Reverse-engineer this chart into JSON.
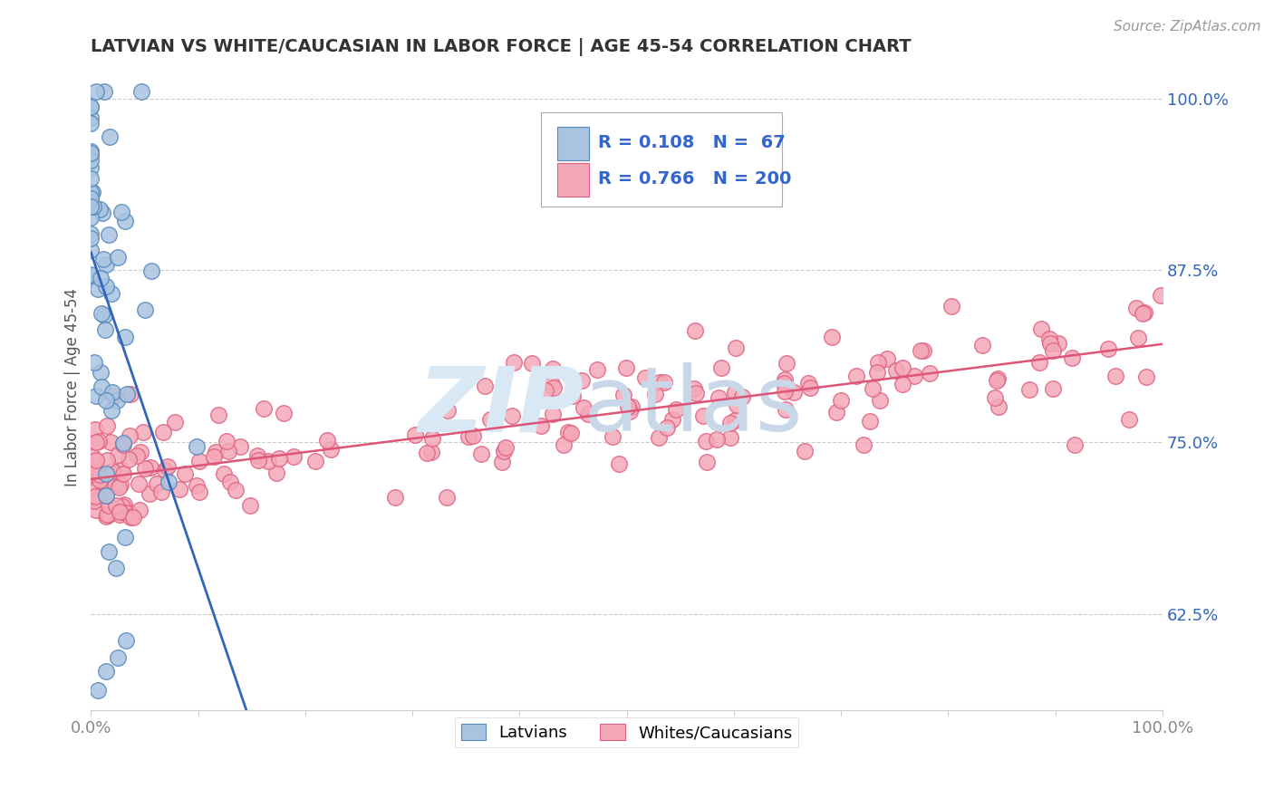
{
  "title": "LATVIAN VS WHITE/CAUCASIAN IN LABOR FORCE | AGE 45-54 CORRELATION CHART",
  "source_text": "Source: ZipAtlas.com",
  "ylabel": "In Labor Force | Age 45-54",
  "xlim": [
    0.0,
    1.0
  ],
  "ylim": [
    0.555,
    1.025
  ],
  "yticks": [
    0.625,
    0.75,
    0.875,
    1.0
  ],
  "ytick_labels": [
    "62.5%",
    "75.0%",
    "87.5%",
    "100.0%"
  ],
  "xtick_labels": [
    "0.0%",
    "100.0%"
  ],
  "latvian_R": 0.108,
  "latvian_N": 67,
  "white_R": 0.766,
  "white_N": 200,
  "legend_labels": [
    "Latvians",
    "Whites/Caucasians"
  ],
  "latvian_color": "#a8c4e0",
  "white_color": "#f4a8b8",
  "latvian_edge_color": "#5588bb",
  "white_edge_color": "#e06080",
  "latvian_line_color": "#3366bb",
  "white_line_color": "#dd5577",
  "bg_color": "#ffffff",
  "grid_color": "#cccccc",
  "title_color": "#333333",
  "axis_label_color": "#555555",
  "ytick_color": "#3366bb",
  "xtick_color": "#888888",
  "legend_R_color": "#3366cc",
  "source_color": "#999999",
  "watermark_zip_color": "#d8e8f4",
  "watermark_atlas_color": "#c8d8e8"
}
